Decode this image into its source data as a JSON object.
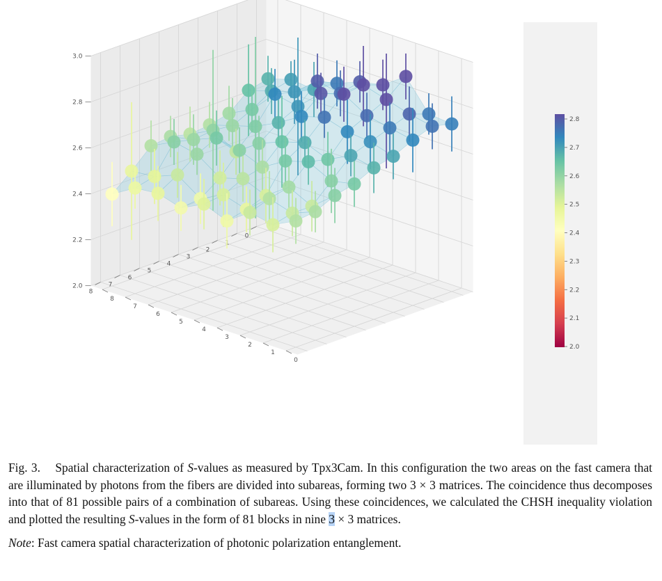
{
  "figure": {
    "colorbar": {
      "ticks": [
        "2.0",
        "2.1",
        "2.2",
        "2.3",
        "2.4",
        "2.5",
        "2.6",
        "2.7",
        "2.8"
      ],
      "colors": [
        "#9e0142",
        "#d53e4f",
        "#f46d43",
        "#fdae61",
        "#fee08b",
        "#ffffbf",
        "#e6f598",
        "#abdda4",
        "#66c2a5",
        "#3288bd",
        "#5e4fa2"
      ]
    },
    "axes": {
      "z_ticks": [
        "2.0",
        "2.2",
        "2.4",
        "2.6",
        "2.8",
        "3.0"
      ],
      "x_ticks": [
        "0",
        "1",
        "2",
        "3",
        "4",
        "5",
        "6",
        "7",
        "8"
      ],
      "y_ticks": [
        "0",
        "1",
        "2",
        "3",
        "4",
        "5",
        "6",
        "7",
        "8"
      ]
    }
  },
  "chart_data": {
    "type": "scatter",
    "title": "",
    "xlabel": "",
    "ylabel": "",
    "zlabel": "",
    "xlim": [
      0,
      8
    ],
    "ylim": [
      0,
      8
    ],
    "zlim": [
      2.0,
      3.0
    ],
    "colorbar_range": [
      2.0,
      2.8
    ],
    "grid": true,
    "z_values_rows": [
      [
        2.66,
        2.69,
        2.68,
        2.74,
        2.78,
        2.8,
        2.87,
        2.74,
        2.73
      ],
      [
        2.64,
        2.67,
        2.7,
        2.78,
        2.76,
        2.83,
        2.8,
        2.77,
        2.75
      ],
      [
        2.57,
        2.62,
        2.72,
        2.7,
        2.79,
        2.82,
        2.76,
        2.74,
        2.72
      ],
      [
        2.55,
        2.58,
        2.61,
        2.66,
        2.72,
        2.75,
        2.72,
        2.71,
        2.68
      ],
      [
        2.54,
        2.59,
        2.53,
        2.6,
        2.64,
        2.67,
        2.63,
        2.68,
        2.66
      ],
      [
        2.56,
        2.58,
        2.62,
        2.6,
        2.56,
        2.62,
        2.65,
        2.6,
        2.62
      ],
      [
        2.55,
        2.6,
        2.58,
        2.51,
        2.54,
        2.5,
        2.57,
        2.52,
        2.6
      ],
      [
        2.47,
        2.48,
        2.52,
        2.45,
        2.5,
        2.47,
        2.55,
        2.52,
        2.56
      ],
      [
        2.4,
        2.46,
        2.47,
        2.44,
        2.49,
        2.45,
        2.52,
        2.5,
        2.55
      ]
    ],
    "error_bars_rows": [
      [
        0.1,
        0.08,
        0.12,
        0.1,
        0.09,
        0.11,
        0.1,
        0.09,
        0.12
      ],
      [
        0.2,
        0.1,
        0.14,
        0.12,
        0.1,
        0.18,
        0.3,
        0.12,
        0.1
      ],
      [
        0.12,
        0.1,
        0.11,
        0.3,
        0.09,
        0.12,
        0.1,
        0.11,
        0.14
      ],
      [
        0.1,
        0.12,
        0.4,
        0.1,
        0.11,
        0.09,
        0.14,
        0.12,
        0.1
      ],
      [
        0.12,
        0.35,
        0.1,
        0.12,
        0.2,
        0.1,
        0.12,
        0.09,
        0.11
      ],
      [
        0.09,
        0.11,
        0.12,
        0.1,
        0.12,
        0.11,
        0.1,
        0.14,
        0.1
      ],
      [
        0.11,
        0.1,
        0.09,
        0.12,
        0.1,
        0.12,
        0.09,
        0.11,
        0.12
      ],
      [
        0.3,
        0.12,
        0.1,
        0.11,
        0.14,
        0.1,
        0.12,
        0.1,
        0.09
      ],
      [
        0.14,
        0.09,
        0.12,
        0.1,
        0.11,
        0.12,
        0.1,
        0.12,
        0.1
      ]
    ]
  },
  "caption": {
    "fig_label": "Fig. 3.",
    "text_1": "Spatial characterization of ",
    "s_symbol": "S",
    "text_2": "-values as measured by Tpx3Cam. In this configuration the two areas on the fast camera that are illuminated by photons from the fibers are divided into subareas, forming two 3 × 3 matrices. The coincidence thus decomposes into that of 81 possible pairs of a combination of subareas. Using these coincidences, we calculated the CHSH inequality violation and plotted the resulting ",
    "text_3": "-values in the form of 81 blocks in nine ",
    "highlight": "3",
    "text_4": " × 3 matrices.",
    "note_label": "Note",
    "note_text": ": Fast camera spatial characterization of photonic polarization entanglement."
  }
}
